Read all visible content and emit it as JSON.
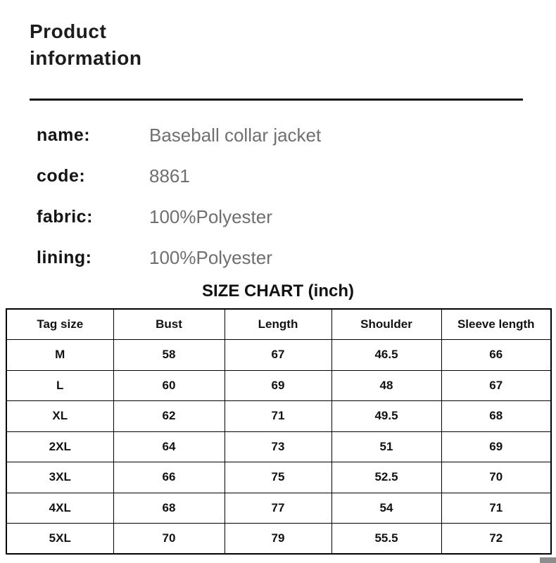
{
  "header": {
    "title": "Product information"
  },
  "product": {
    "fields": [
      {
        "label": "name:",
        "value": "Baseball collar jacket"
      },
      {
        "label": "code:",
        "value": "8861"
      },
      {
        "label": "fabric:",
        "value": "100%Polyester"
      },
      {
        "label": "lining:",
        "value": "100%Polyester"
      }
    ]
  },
  "size_chart": {
    "title": "SIZE CHART (inch)",
    "columns": [
      "Tag size",
      "Bust",
      "Length",
      "Shoulder",
      "Sleeve length"
    ],
    "rows": [
      [
        "M",
        "58",
        "67",
        "46.5",
        "66"
      ],
      [
        "L",
        "60",
        "69",
        "48",
        "67"
      ],
      [
        "XL",
        "62",
        "71",
        "49.5",
        "68"
      ],
      [
        "2XL",
        "64",
        "73",
        "51",
        "69"
      ],
      [
        "3XL",
        "66",
        "75",
        "52.5",
        "70"
      ],
      [
        "4XL",
        "68",
        "77",
        "54",
        "71"
      ],
      [
        "5XL",
        "70",
        "79",
        "55.5",
        "72"
      ]
    ]
  },
  "colors": {
    "title_text": "#1c1c1c",
    "label_text": "#141414",
    "value_text": "#6f6f6f",
    "table_border": "#000000",
    "corner_block": "#8d8d8d",
    "background": "#ffffff"
  }
}
